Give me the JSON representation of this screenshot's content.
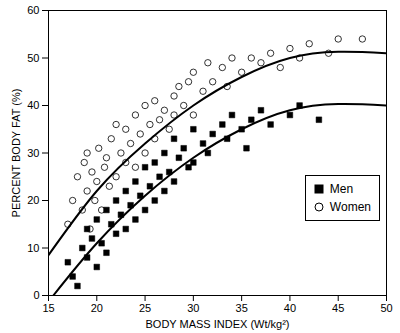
{
  "chart_data": {
    "type": "scatter",
    "x_label": "BODY MASS INDEX (Wt/kg²)",
    "y_label": "PERCENT BODY FAT (%)",
    "xlim": [
      15,
      50
    ],
    "xticks": [
      15,
      20,
      25,
      30,
      35,
      40,
      45,
      50
    ],
    "ylim": [
      0,
      60
    ],
    "yticks": [
      0,
      10,
      20,
      30,
      40,
      50,
      60
    ],
    "grid": false,
    "legend": "right",
    "series": [
      {
        "name": "Women",
        "type": "scatter",
        "marker": "open circle",
        "color": "#000000",
        "x": [
          17,
          17.5,
          18,
          18.5,
          18.7,
          19,
          19,
          19.3,
          19.5,
          19.8,
          20,
          20.2,
          20.5,
          20.8,
          21,
          21.3,
          21.5,
          22,
          22,
          22.5,
          23,
          23,
          23.5,
          24,
          24,
          24.5,
          25,
          25,
          25.5,
          26,
          26,
          26.5,
          27,
          27.5,
          28,
          28,
          28.5,
          29,
          29.5,
          30,
          30,
          31,
          31.5,
          32,
          33,
          33.5,
          34,
          35,
          36,
          37,
          38,
          39,
          40,
          41,
          42,
          44,
          45,
          47.5
        ],
        "values": [
          15,
          20,
          25,
          18,
          28,
          22,
          30,
          14,
          26,
          20,
          24,
          31,
          18,
          27,
          29,
          23,
          33,
          25,
          36,
          30,
          28,
          35,
          32,
          38,
          27,
          34,
          30,
          40,
          36,
          33,
          41,
          37,
          39,
          35,
          42,
          38,
          44,
          40,
          45,
          38,
          47,
          43,
          49,
          45,
          48,
          44,
          50,
          47,
          50,
          49,
          51,
          48,
          52,
          50,
          53,
          51,
          54,
          54
        ]
      },
      {
        "name": "Men",
        "type": "scatter",
        "marker": "square",
        "color": "#000000",
        "x": [
          17,
          17.5,
          18,
          18.5,
          19,
          19,
          19.5,
          20,
          20,
          20.5,
          21,
          21,
          21.5,
          22,
          22,
          22.5,
          23,
          23,
          23.5,
          24,
          24,
          24.5,
          25,
          25,
          25.5,
          26,
          26,
          26.5,
          27,
          27,
          27.5,
          28,
          28,
          28.5,
          29,
          29.5,
          30,
          30,
          31,
          31.5,
          32,
          33,
          33.5,
          34,
          35,
          35.5,
          36,
          37,
          38,
          40,
          41,
          43
        ],
        "values": [
          7,
          4,
          2,
          10,
          8,
          14,
          12,
          6,
          16,
          11,
          18,
          9,
          15,
          20,
          13,
          17,
          22,
          14,
          19,
          24,
          16,
          21,
          18,
          27,
          23,
          20,
          28,
          25,
          30,
          22,
          26,
          33,
          24,
          29,
          31,
          27,
          35,
          28,
          32,
          30,
          34,
          36,
          33,
          38,
          35,
          31,
          37,
          39,
          36,
          38,
          40,
          37
        ]
      },
      {
        "type": "line",
        "line_style": "solid",
        "color": "#000000",
        "x": [
          15,
          20,
          25,
          30,
          35,
          40,
          45,
          50
        ],
        "values": [
          8.5,
          22,
          32,
          40,
          46,
          50,
          51.3,
          51
        ]
      },
      {
        "type": "line",
        "line_style": "solid",
        "color": "#000000",
        "x": [
          15.5,
          20,
          25,
          30,
          35,
          40,
          45,
          50
        ],
        "values": [
          0,
          11,
          21,
          29,
          35,
          39,
          40.3,
          40
        ]
      }
    ]
  }
}
